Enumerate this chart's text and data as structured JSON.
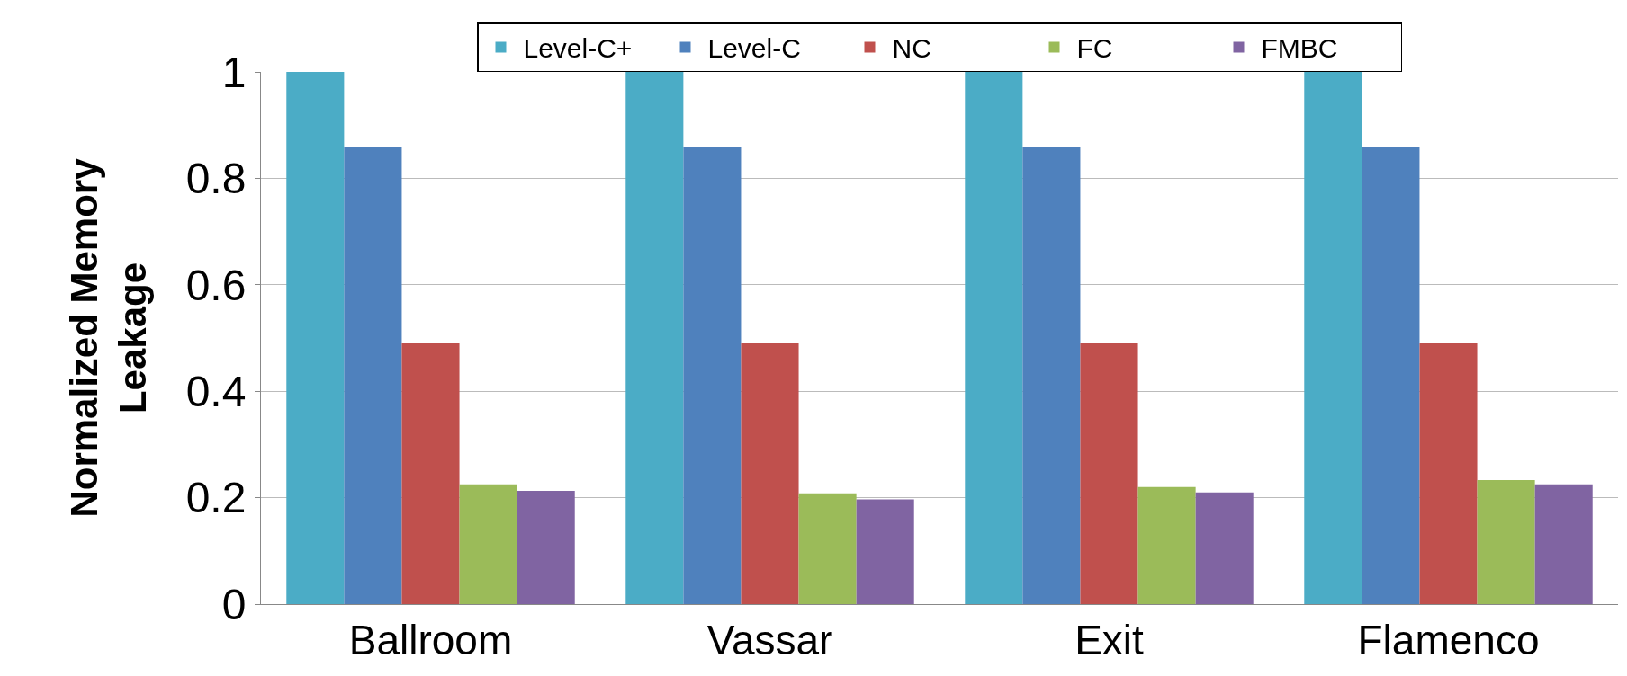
{
  "chart_data": {
    "type": "bar",
    "ylabel": "Normalized Memory Leakage",
    "categories": [
      "Ballroom",
      "Vassar",
      "Exit",
      "Flamenco"
    ],
    "series": [
      {
        "name": "Level-C+",
        "color": "#4bacc6",
        "values": [
          1,
          1,
          1,
          1
        ]
      },
      {
        "name": "Level-C",
        "color": "#4f81bd",
        "values": [
          0.86,
          0.86,
          0.86,
          0.86
        ]
      },
      {
        "name": "NC",
        "color": "#c0504d",
        "values": [
          0.49,
          0.49,
          0.49,
          0.49
        ]
      },
      {
        "name": "FC",
        "color": "#9bbb59",
        "values": [
          0.225,
          0.208,
          0.22,
          0.233
        ]
      },
      {
        "name": "FMBC",
        "color": "#8064a2",
        "values": [
          0.213,
          0.197,
          0.21,
          0.225
        ]
      }
    ],
    "ylim": [
      0,
      1
    ],
    "yticks": [
      0,
      0.2,
      0.4,
      0.6,
      0.8,
      1
    ],
    "grid": "y",
    "legend": "top"
  }
}
